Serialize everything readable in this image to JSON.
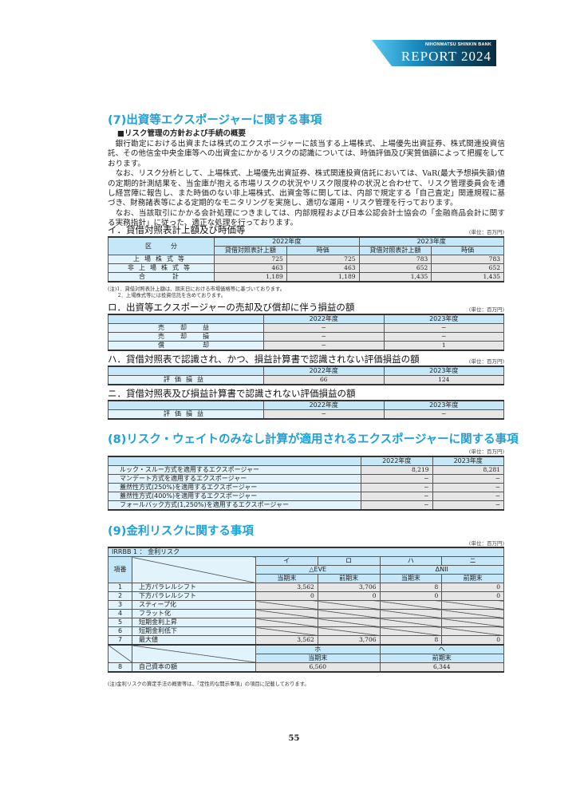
{
  "header": {
    "bank_name": "NIHONMATSU SHINKIN BANK",
    "report_title": "REPORT 2024"
  },
  "colors": {
    "accent": "#1ea0d8",
    "header_cell": "#c6e7f7",
    "label_cell": "#e2f3fb",
    "value_cell": "#e6e6e6"
  },
  "s7": {
    "title": "(7)出資等エクスポージャーに関する事項",
    "subheading": "■リスク管理の方針および手続の概要",
    "paragraphs": [
      "銀行勘定における出資または株式のエクスポージャーに該当する上場株式、上場優先出資証券、株式関連投資信託、その他信金中央金庫等への出資金にかかるリスクの認識については、時価評価及び実質価額によって把握をしております。",
      "なお、リスク分析として、上場株式、上場優先出資証券、株式関連投資信託においては、VaR(最大予想損失額)値の定期的計測結果を、当金庫が抱える市場リスクの状況やリスク限度枠の状況と合わせて、リスク管理委員会を通し経営陣に報告し、また時価のない非上場株式、出資金等に関しては、内部で規定する「自己査定」関連規程に基づき、財務諸表等による定期的なモニタリングを実施し、適切な運用・リスク管理を行っております。",
      "なお、当該取引にかかる会計処理につきましては、内部規程および日本公認会計士協会の「金融商品会計に関する実務指針」に従った、適正な処理を行っております。"
    ],
    "i": {
      "heading": "イ．貸借対照表計上額及び時価等",
      "unit": "(単位：百万円)",
      "col_header": "区　　　分",
      "years": [
        "2022年度",
        "2023年度"
      ],
      "sub": [
        "貸借対照表計上額",
        "時価",
        "貸借対照表計上額",
        "時価"
      ],
      "rows": [
        {
          "label": "上場株式等",
          "values": [
            "725",
            "725",
            "783",
            "783"
          ]
        },
        {
          "label": "非上場株式等",
          "values": [
            "463",
            "463",
            "652",
            "652"
          ]
        },
        {
          "label": "合　　計",
          "values": [
            "1,189",
            "1,189",
            "1,435",
            "1,435"
          ]
        }
      ],
      "notes": [
        "(注)1．貸借対照表計上額は、期末日における市場価格等に基づいております。",
        "　　2．上場株式等には投資信託を含めております。"
      ]
    },
    "ro": {
      "heading": "ロ．出資等エクスポージャーの売却及び償却に伴う損益の額",
      "unit": "(単位：百万円)",
      "years": [
        "2022年度",
        "2023年度"
      ],
      "rows": [
        {
          "label": "売　却　益",
          "values": [
            "−",
            "−"
          ]
        },
        {
          "label": "売　却　損",
          "values": [
            "−",
            "−"
          ]
        },
        {
          "label": "償　　　却",
          "values": [
            "−",
            "1"
          ]
        }
      ]
    },
    "ha": {
      "heading": "ハ．貸借対照表で認識され、かつ、損益計算書で認識されない評価損益の額",
      "unit": "(単位：百万円)",
      "years": [
        "2022年度",
        "2023年度"
      ],
      "rows": [
        {
          "label": "評価損益",
          "values": [
            "66",
            "124"
          ]
        }
      ]
    },
    "ni": {
      "heading": "ニ．貸借対照表及び損益計算書で認識されない評価損益の額",
      "years": [
        "2022年度",
        "2023年度"
      ],
      "rows": [
        {
          "label": "評価損益",
          "values": [
            "−",
            "−"
          ]
        }
      ]
    }
  },
  "s8": {
    "title": "(8)リスク・ウェイトのみなし計算が適用されるエクスポージャーに関する事項",
    "unit": "(単位：百万円)",
    "years": [
      "2022年度",
      "2023年度"
    ],
    "rows": [
      {
        "label": "ルック・スルー方式を適用するエクスポージャー",
        "values": [
          "8,219",
          "8,281"
        ]
      },
      {
        "label": "マンデート方式を適用するエクスポージャー",
        "values": [
          "−",
          "−"
        ]
      },
      {
        "label": "蓋然性方式(250%)を適用するエクスポージャー",
        "values": [
          "−",
          "−"
        ]
      },
      {
        "label": "蓋然性方式(400%)を適用するエクスポージャー",
        "values": [
          "−",
          "−"
        ]
      },
      {
        "label": "フォールバック方式(1,250%)を適用するエクスポージャー",
        "values": [
          "−",
          "−"
        ]
      }
    ]
  },
  "s9": {
    "title": "(9)金利リスクに関する事項",
    "unit": "(単位：百万円)",
    "table_title": "IRRBB 1 ： 金利リスク",
    "item_no_header": "項番",
    "col_letters": [
      "イ",
      "ロ",
      "ハ",
      "ニ"
    ],
    "groups": [
      "△EVE",
      "ΔNII"
    ],
    "periods": [
      "当期末",
      "前期末",
      "当期末",
      "前期末"
    ],
    "rows": [
      {
        "no": "1",
        "label": "上方パラレルシフト",
        "values": [
          "3,562",
          "3,706",
          "8",
          "0"
        ]
      },
      {
        "no": "2",
        "label": "下方パラレルシフト",
        "values": [
          "0",
          "0",
          "0",
          "0"
        ]
      },
      {
        "no": "3",
        "label": "スティープ化",
        "values": null
      },
      {
        "no": "4",
        "label": "フラット化",
        "values": null
      },
      {
        "no": "5",
        "label": "短期金利上昇",
        "values": null
      },
      {
        "no": "6",
        "label": "短期金利低下",
        "values": null
      },
      {
        "no": "7",
        "label": "最大値",
        "values": [
          "3,562",
          "3,706",
          "8",
          "0"
        ]
      }
    ],
    "capital": {
      "letters": [
        "ホ",
        "ヘ"
      ],
      "periods": [
        "当期末",
        "前期末"
      ],
      "no": "8",
      "label": "自己資本の額",
      "values": [
        "6,560",
        "6,344"
      ]
    },
    "note": "(注)金利リスクの算定手法の概要等は、「定性的な開示事項」の項目に記載しております。"
  },
  "page_number": "55"
}
